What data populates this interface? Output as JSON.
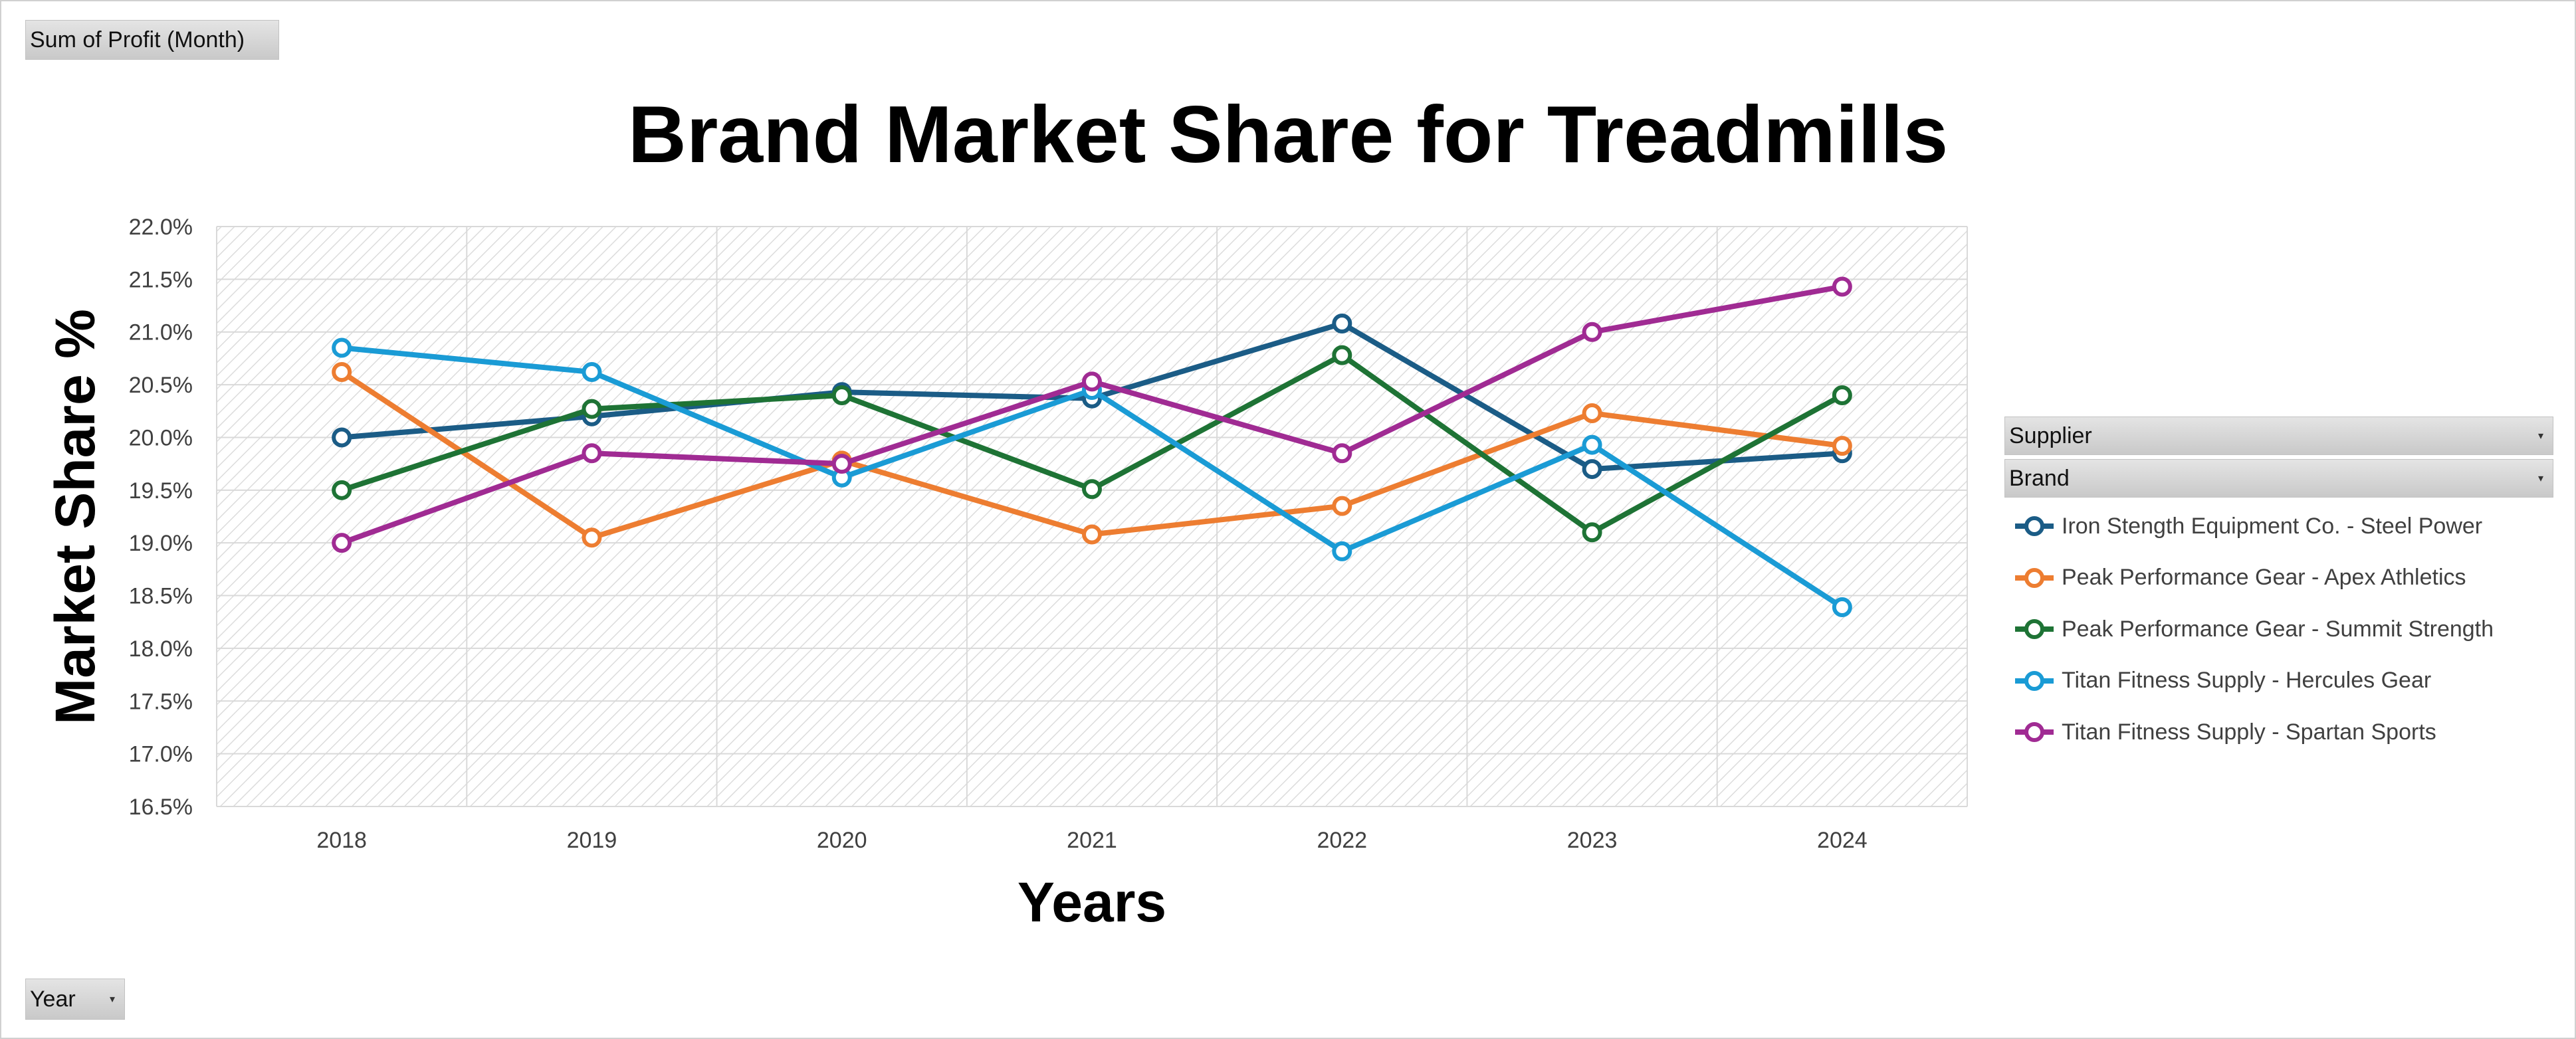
{
  "pivot": {
    "value_field": "Sum of Profit (Month)",
    "axis_field": "Year",
    "legend_fields": [
      "Supplier",
      "Brand"
    ]
  },
  "colors": {
    "background": "#ffffff",
    "grid": "#d9d9d9",
    "plot_hatch": "#dcdcdc",
    "axis_text": "#404040"
  },
  "chart_data": {
    "type": "line",
    "title": "Brand Market Share for Treadmills",
    "xlabel": "Years",
    "ylabel": "Market Share %",
    "categories": [
      "2018",
      "2019",
      "2020",
      "2021",
      "2022",
      "2023",
      "2024"
    ],
    "y_ticks": [
      "16.5%",
      "17.0%",
      "17.5%",
      "18.0%",
      "18.5%",
      "19.0%",
      "19.5%",
      "20.0%",
      "20.5%",
      "21.0%",
      "21.5%",
      "22.0%"
    ],
    "ylim": [
      16.5,
      22.0
    ],
    "y_unit": "%",
    "grid": true,
    "legend_position": "right",
    "markers": "open-circle",
    "series": [
      {
        "name": "Iron Stength Equipment Co. - Steel Power",
        "color": "#1b5c86",
        "values": [
          20.0,
          20.2,
          20.43,
          20.37,
          21.08,
          19.7,
          19.85
        ]
      },
      {
        "name": "Peak Performance Gear - Apex Athletics",
        "color": "#ed7d31",
        "values": [
          20.62,
          19.05,
          19.78,
          19.08,
          19.35,
          20.23,
          19.92
        ]
      },
      {
        "name": "Peak Performance Gear - Summit Strength",
        "color": "#1e7335",
        "values": [
          19.5,
          20.27,
          20.4,
          19.51,
          20.78,
          19.1,
          20.4
        ]
      },
      {
        "name": "Titan Fitness Supply - Hercules Gear",
        "color": "#1a9bd5",
        "values": [
          20.85,
          20.62,
          19.62,
          20.45,
          18.92,
          19.93,
          18.39
        ]
      },
      {
        "name": "Titan Fitness Supply - Spartan Sports",
        "color": "#a02b93",
        "values": [
          19.0,
          19.85,
          19.75,
          20.53,
          19.85,
          21.0,
          21.43
        ]
      }
    ]
  }
}
